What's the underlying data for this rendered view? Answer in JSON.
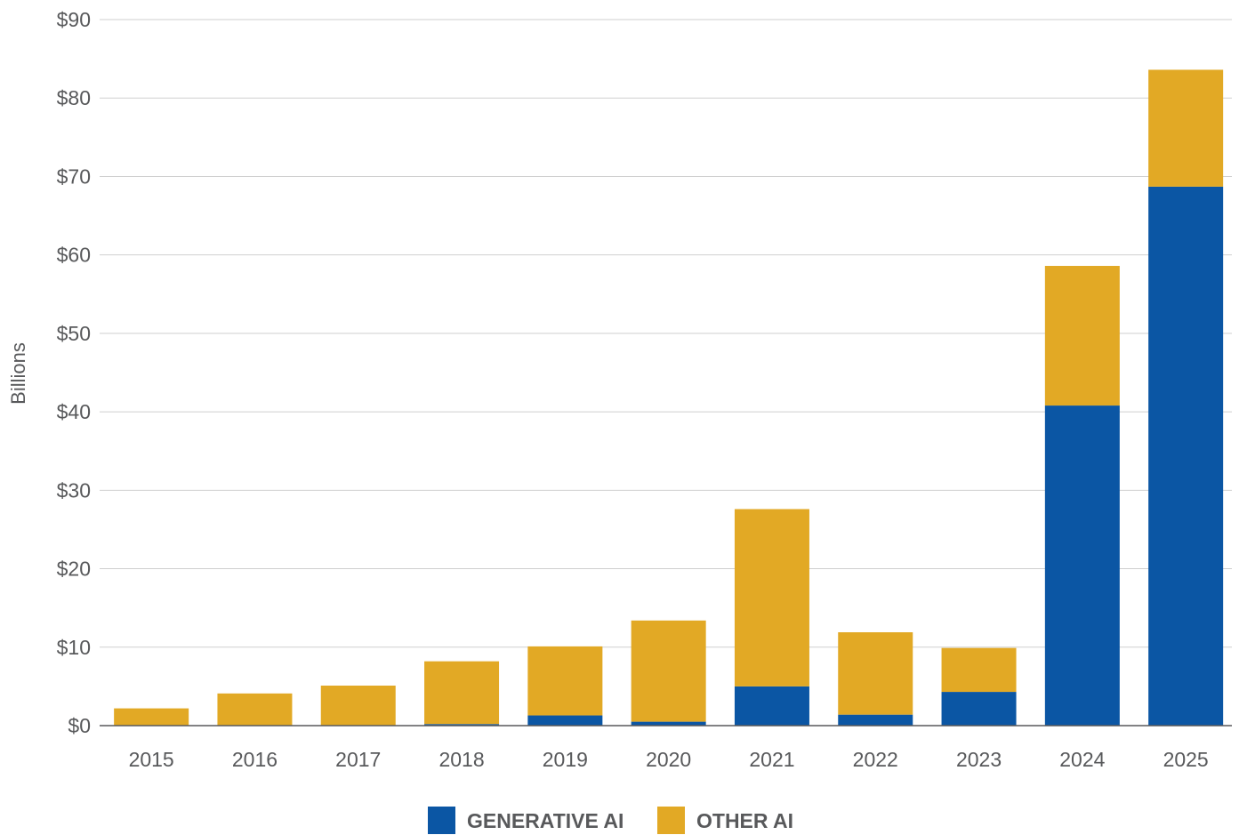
{
  "chart_data": {
    "type": "bar",
    "stacked": true,
    "categories": [
      "2015",
      "2016",
      "2017",
      "2018",
      "2019",
      "2020",
      "2021",
      "2022",
      "2023",
      "2024",
      "2025"
    ],
    "series": [
      {
        "name": "GENERATIVE AI",
        "color": "#0b56a4",
        "values": [
          0,
          0,
          0,
          0.2,
          1.3,
          0.5,
          5.0,
          1.4,
          4.3,
          40.8,
          68.7
        ]
      },
      {
        "name": "OTHER AI",
        "color": "#e2a925",
        "values": [
          2.2,
          4.1,
          5.1,
          8.0,
          8.8,
          12.9,
          22.6,
          10.5,
          5.6,
          17.8,
          14.9
        ]
      }
    ],
    "title": "",
    "xlabel": "",
    "ylabel": "Billions",
    "ylim": [
      0,
      90
    ],
    "yticks": [
      0,
      10,
      20,
      30,
      40,
      50,
      60,
      70,
      80,
      90
    ],
    "ytick_labels": [
      "$0",
      "$10",
      "$20",
      "$30",
      "$40",
      "$50",
      "$60",
      "$70",
      "$80",
      "$90"
    ],
    "grid": true,
    "legend_position": "bottom-center"
  }
}
